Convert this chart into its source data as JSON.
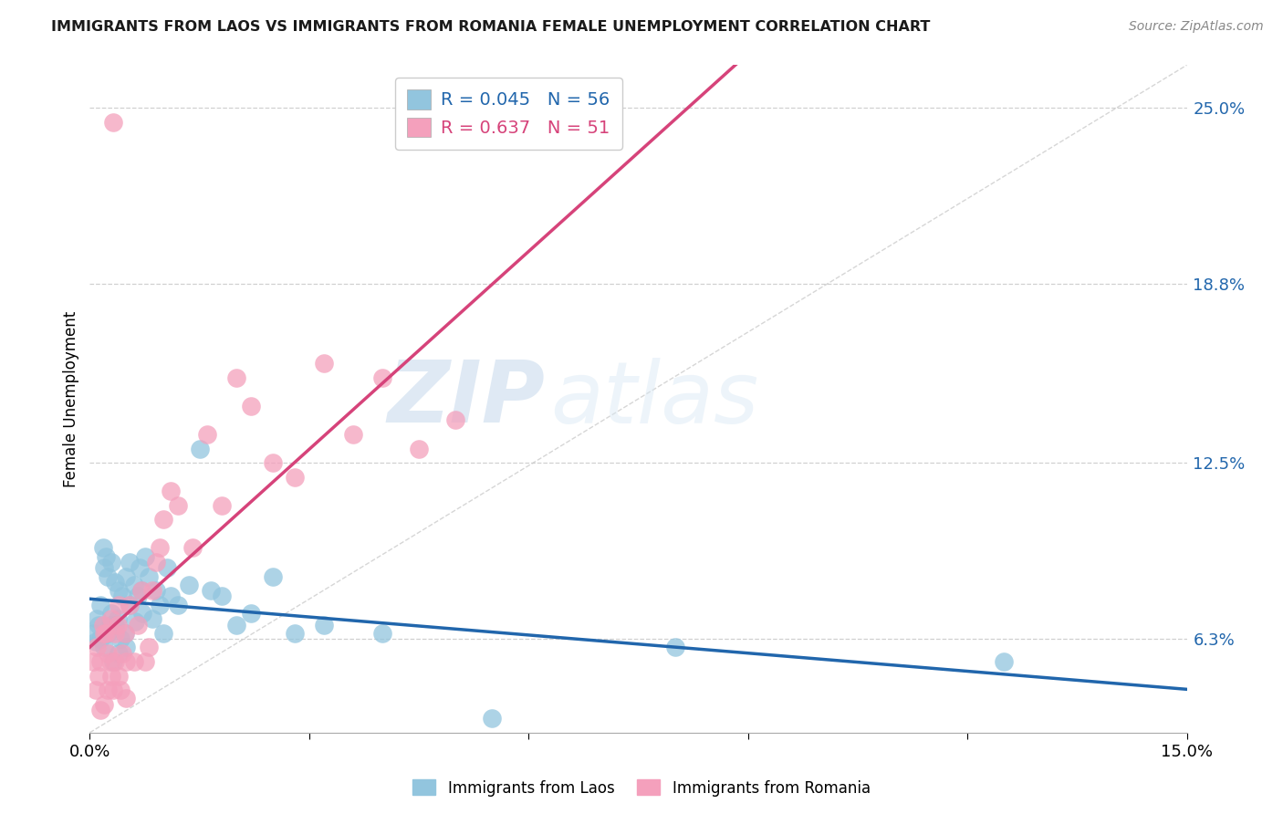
{
  "title": "IMMIGRANTS FROM LAOS VS IMMIGRANTS FROM ROMANIA FEMALE UNEMPLOYMENT CORRELATION CHART",
  "source": "Source: ZipAtlas.com",
  "ylabel": "Female Unemployment",
  "right_yticks": [
    6.3,
    12.5,
    18.8,
    25.0
  ],
  "right_ytick_labels": [
    "6.3%",
    "12.5%",
    "18.8%",
    "25.0%"
  ],
  "xmin": 0.0,
  "xmax": 15.0,
  "ymin": 3.0,
  "ymax": 26.5,
  "legend_laos_r": "0.045",
  "legend_laos_n": "56",
  "legend_romania_r": "0.637",
  "legend_romania_n": "51",
  "blue_color": "#92c5de",
  "pink_color": "#f4a0bc",
  "blue_line_color": "#2166ac",
  "pink_line_color": "#d6437a",
  "diagonal_color": "#cccccc",
  "watermark_zip": "ZIP",
  "watermark_atlas": "atlas",
  "background_color": "#ffffff",
  "laos_x": [
    0.05,
    0.08,
    0.1,
    0.12,
    0.15,
    0.15,
    0.18,
    0.2,
    0.2,
    0.22,
    0.25,
    0.25,
    0.28,
    0.3,
    0.3,
    0.32,
    0.35,
    0.35,
    0.38,
    0.4,
    0.4,
    0.42,
    0.45,
    0.48,
    0.5,
    0.5,
    0.55,
    0.55,
    0.6,
    0.62,
    0.65,
    0.68,
    0.7,
    0.72,
    0.75,
    0.8,
    0.85,
    0.9,
    0.95,
    1.0,
    1.05,
    1.1,
    1.2,
    1.35,
    1.5,
    1.65,
    1.8,
    2.0,
    2.2,
    2.5,
    2.8,
    3.2,
    4.0,
    5.5,
    8.0,
    12.5
  ],
  "laos_y": [
    6.5,
    6.2,
    7.0,
    6.8,
    7.5,
    6.3,
    9.5,
    8.8,
    6.0,
    9.2,
    6.5,
    8.5,
    6.8,
    9.0,
    7.2,
    5.5,
    8.3,
    6.8,
    7.0,
    8.0,
    5.8,
    6.3,
    7.8,
    6.5,
    8.5,
    6.0,
    9.0,
    7.5,
    8.2,
    6.9,
    7.8,
    8.8,
    8.0,
    7.2,
    9.2,
    8.5,
    7.0,
    8.0,
    7.5,
    6.5,
    8.8,
    7.8,
    7.5,
    8.2,
    13.0,
    8.0,
    7.8,
    6.8,
    7.2,
    8.5,
    6.5,
    6.8,
    6.5,
    3.5,
    6.0,
    5.5
  ],
  "romania_x": [
    0.05,
    0.08,
    0.1,
    0.12,
    0.15,
    0.15,
    0.18,
    0.2,
    0.2,
    0.22,
    0.25,
    0.25,
    0.28,
    0.3,
    0.3,
    0.32,
    0.35,
    0.35,
    0.38,
    0.4,
    0.4,
    0.42,
    0.45,
    0.48,
    0.5,
    0.5,
    0.55,
    0.6,
    0.65,
    0.7,
    0.75,
    0.8,
    0.85,
    0.9,
    0.95,
    1.0,
    1.1,
    1.2,
    1.4,
    1.6,
    1.8,
    2.0,
    2.2,
    2.5,
    2.8,
    3.2,
    3.6,
    4.0,
    4.5,
    5.0,
    0.32
  ],
  "romania_y": [
    5.5,
    4.5,
    6.0,
    5.0,
    5.5,
    3.8,
    6.8,
    6.5,
    4.0,
    6.5,
    5.8,
    4.5,
    5.5,
    7.0,
    5.0,
    4.5,
    5.5,
    6.5,
    6.8,
    7.5,
    5.0,
    4.5,
    5.8,
    6.5,
    5.5,
    4.2,
    7.5,
    5.5,
    6.8,
    8.0,
    5.5,
    6.0,
    8.0,
    9.0,
    9.5,
    10.5,
    11.5,
    11.0,
    9.5,
    13.5,
    11.0,
    15.5,
    14.5,
    12.5,
    12.0,
    16.0,
    13.5,
    15.5,
    13.0,
    14.0,
    24.5
  ],
  "x_xticks": [
    0.0,
    3.0,
    6.0,
    9.0,
    12.0,
    15.0
  ],
  "x_xtick_labels": [
    "0.0%",
    "",
    "",
    "",
    "",
    "15.0%"
  ]
}
